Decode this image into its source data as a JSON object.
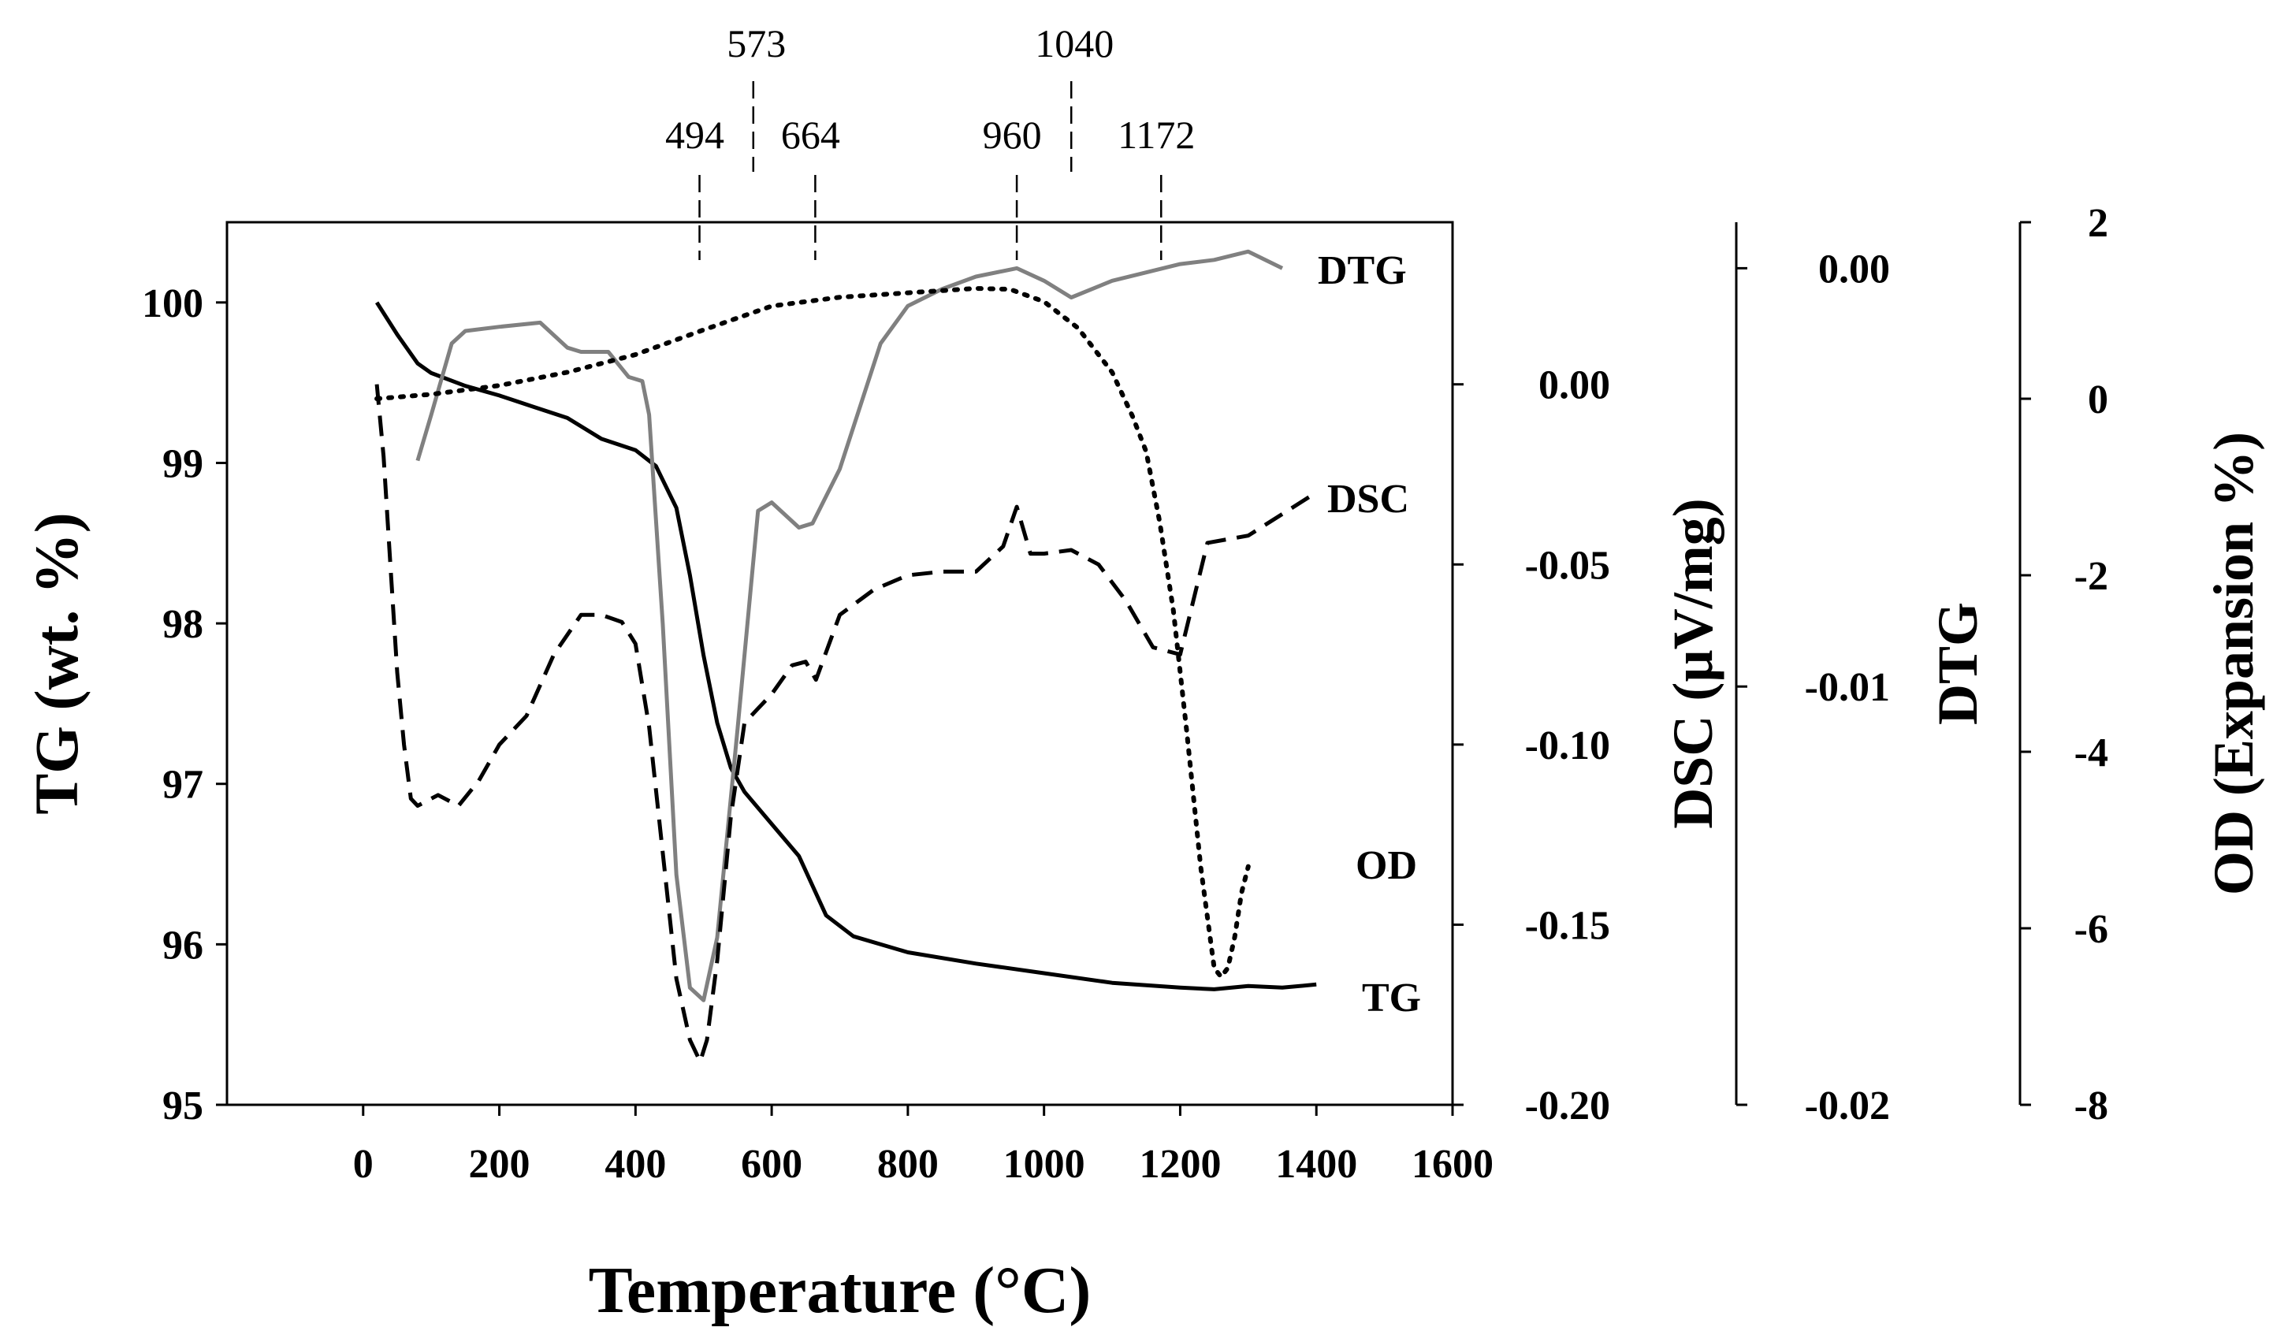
{
  "chart_data": {
    "type": "line",
    "title": "",
    "xlabel": "Temperature (°C)",
    "xlim": [
      -200,
      1600
    ],
    "xticks": [
      0,
      200,
      400,
      600,
      800,
      1000,
      1200,
      1400,
      1600
    ],
    "axes": {
      "tg": {
        "label": "TG (wt. %)",
        "lim": [
          95,
          100.5
        ],
        "ticks": [
          95,
          96,
          97,
          98,
          99,
          100
        ]
      },
      "dsc": {
        "label": "DSC (µV/mg)",
        "lim": [
          -0.2,
          0.045
        ],
        "ticks": [
          0.0,
          -0.05,
          -0.1,
          -0.15,
          -0.2
        ],
        "tick_labels": [
          "0.00",
          "-0.05",
          "-0.10",
          "-0.15",
          "-0.20"
        ]
      },
      "dtg": {
        "label": "DTG",
        "lim": [
          -0.02,
          0.0011
        ],
        "ticks": [
          0.0,
          -0.01,
          -0.02
        ],
        "tick_labels": [
          "0.00",
          "-0.01",
          "-0.02"
        ]
      },
      "od": {
        "label": "OD (Expansion %)",
        "lim": [
          -8,
          2
        ],
        "ticks": [
          2,
          0,
          -2,
          -4,
          -6,
          -8
        ]
      }
    },
    "annotations": [
      {
        "x": 494,
        "label": "494",
        "level": 1
      },
      {
        "x": 573,
        "label": "573",
        "level": 2
      },
      {
        "x": 664,
        "label": "664",
        "level": 1
      },
      {
        "x": 960,
        "label": "960",
        "level": 1
      },
      {
        "x": 1040,
        "label": "1040",
        "level": 2
      },
      {
        "x": 1172,
        "label": "1172",
        "level": 1
      }
    ],
    "series": [
      {
        "name": "TG",
        "axis": "tg",
        "color": "#000000",
        "style": "solid",
        "x": [
          20,
          50,
          80,
          100,
          150,
          200,
          250,
          300,
          350,
          400,
          430,
          460,
          480,
          500,
          520,
          540,
          560,
          600,
          640,
          680,
          720,
          800,
          900,
          1000,
          1100,
          1200,
          1250,
          1300,
          1350,
          1400
        ],
        "y": [
          100.0,
          99.8,
          99.62,
          99.56,
          99.48,
          99.42,
          99.35,
          99.28,
          99.15,
          99.08,
          98.98,
          98.72,
          98.3,
          97.8,
          97.38,
          97.1,
          96.95,
          96.75,
          96.55,
          96.18,
          96.05,
          95.95,
          95.88,
          95.82,
          95.76,
          95.73,
          95.72,
          95.74,
          95.73,
          95.75
        ]
      },
      {
        "name": "DTG",
        "axis": "dtg",
        "color": "#808080",
        "style": "solid",
        "x": [
          80,
          100,
          130,
          150,
          200,
          260,
          300,
          320,
          360,
          390,
          410,
          420,
          440,
          460,
          480,
          500,
          520,
          550,
          580,
          600,
          640,
          660,
          700,
          760,
          800,
          850,
          900,
          960,
          1000,
          1040,
          1100,
          1150,
          1200,
          1250,
          1300,
          1350
        ],
        "y": [
          -0.0046,
          -0.0035,
          -0.0018,
          -0.0015,
          -0.0014,
          -0.0013,
          -0.0019,
          -0.002,
          -0.002,
          -0.0026,
          -0.0027,
          -0.0035,
          -0.0085,
          -0.0145,
          -0.0172,
          -0.0175,
          -0.016,
          -0.011,
          -0.0058,
          -0.0056,
          -0.0062,
          -0.0061,
          -0.0048,
          -0.0018,
          -0.0009,
          -0.0005,
          -0.0002,
          0.0,
          -0.0003,
          -0.0007,
          -0.0003,
          -0.0001,
          0.0001,
          0.0002,
          0.0004,
          0.0
        ]
      },
      {
        "name": "DSC",
        "axis": "dsc",
        "color": "#000000",
        "style": "dashed",
        "x": [
          20,
          30,
          40,
          50,
          60,
          70,
          80,
          110,
          140,
          170,
          200,
          240,
          280,
          320,
          350,
          380,
          400,
          420,
          440,
          460,
          480,
          495,
          505,
          520,
          540,
          560,
          580,
          600,
          630,
          650,
          665,
          700,
          750,
          800,
          850,
          900,
          940,
          960,
          980,
          1000,
          1040,
          1080,
          1120,
          1160,
          1200,
          1240,
          1300,
          1400
        ],
        "y": [
          0.0,
          -0.02,
          -0.05,
          -0.08,
          -0.1,
          -0.115,
          -0.117,
          -0.114,
          -0.117,
          -0.11,
          -0.1,
          -0.092,
          -0.075,
          -0.064,
          -0.064,
          -0.066,
          -0.072,
          -0.095,
          -0.13,
          -0.165,
          -0.182,
          -0.188,
          -0.182,
          -0.16,
          -0.12,
          -0.094,
          -0.09,
          -0.086,
          -0.078,
          -0.077,
          -0.082,
          -0.064,
          -0.057,
          -0.053,
          -0.052,
          -0.052,
          -0.045,
          -0.034,
          -0.047,
          -0.047,
          -0.046,
          -0.05,
          -0.06,
          -0.073,
          -0.075,
          -0.044,
          -0.042,
          -0.03
        ]
      },
      {
        "name": "OD",
        "axis": "od",
        "color": "#000000",
        "style": "dotted",
        "x": [
          20,
          100,
          200,
          300,
          400,
          500,
          600,
          700,
          800,
          900,
          950,
          1000,
          1050,
          1100,
          1130,
          1150,
          1170,
          1190,
          1210,
          1230,
          1250,
          1260,
          1270,
          1280,
          1290,
          1300
        ],
        "y": [
          0.0,
          0.05,
          0.15,
          0.3,
          0.5,
          0.78,
          1.05,
          1.15,
          1.2,
          1.25,
          1.24,
          1.1,
          0.8,
          0.3,
          -0.2,
          -0.6,
          -1.4,
          -2.4,
          -3.8,
          -5.3,
          -6.45,
          -6.55,
          -6.45,
          -6.1,
          -5.6,
          -5.3
        ]
      }
    ],
    "series_labels": [
      "DTG",
      "DSC",
      "OD",
      "TG"
    ]
  }
}
